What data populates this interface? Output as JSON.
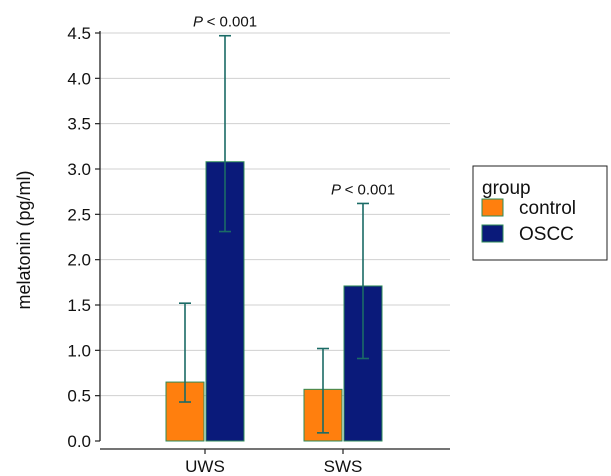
{
  "chart_data": {
    "type": "bar",
    "categories": [
      "UWS",
      "SWS"
    ],
    "ylabel": "melatonin (pg/ml)",
    "xlabel": "",
    "ylim": [
      0,
      4.5
    ],
    "yticks": [
      "0.0",
      "0.5",
      "1.0",
      "1.5",
      "2.0",
      "2.5",
      "3.0",
      "3.5",
      "4.0",
      "4.5"
    ],
    "grid": true,
    "series": [
      {
        "name": "control",
        "color": "#ff7f0e",
        "values": [
          0.65,
          0.57
        ],
        "error_low": [
          0.43,
          0.09
        ],
        "error_high": [
          1.52,
          1.02
        ]
      },
      {
        "name": "OSCC",
        "color": "#0a1a7a",
        "values": [
          3.08,
          1.71
        ],
        "error_low": [
          2.31,
          0.91
        ],
        "error_high": [
          4.47,
          2.62
        ]
      }
    ],
    "annotations": [
      {
        "category": "UWS",
        "text": "< 0.001"
      },
      {
        "category": "SWS",
        "text": "< 0.001"
      }
    ],
    "annotation_prefix": "P",
    "legend": {
      "title": "group",
      "position": "right"
    },
    "colors": {
      "errorbar": "#1b6b66",
      "bar_edge": "#2e8b57",
      "grid": "#d0d0d0"
    }
  }
}
